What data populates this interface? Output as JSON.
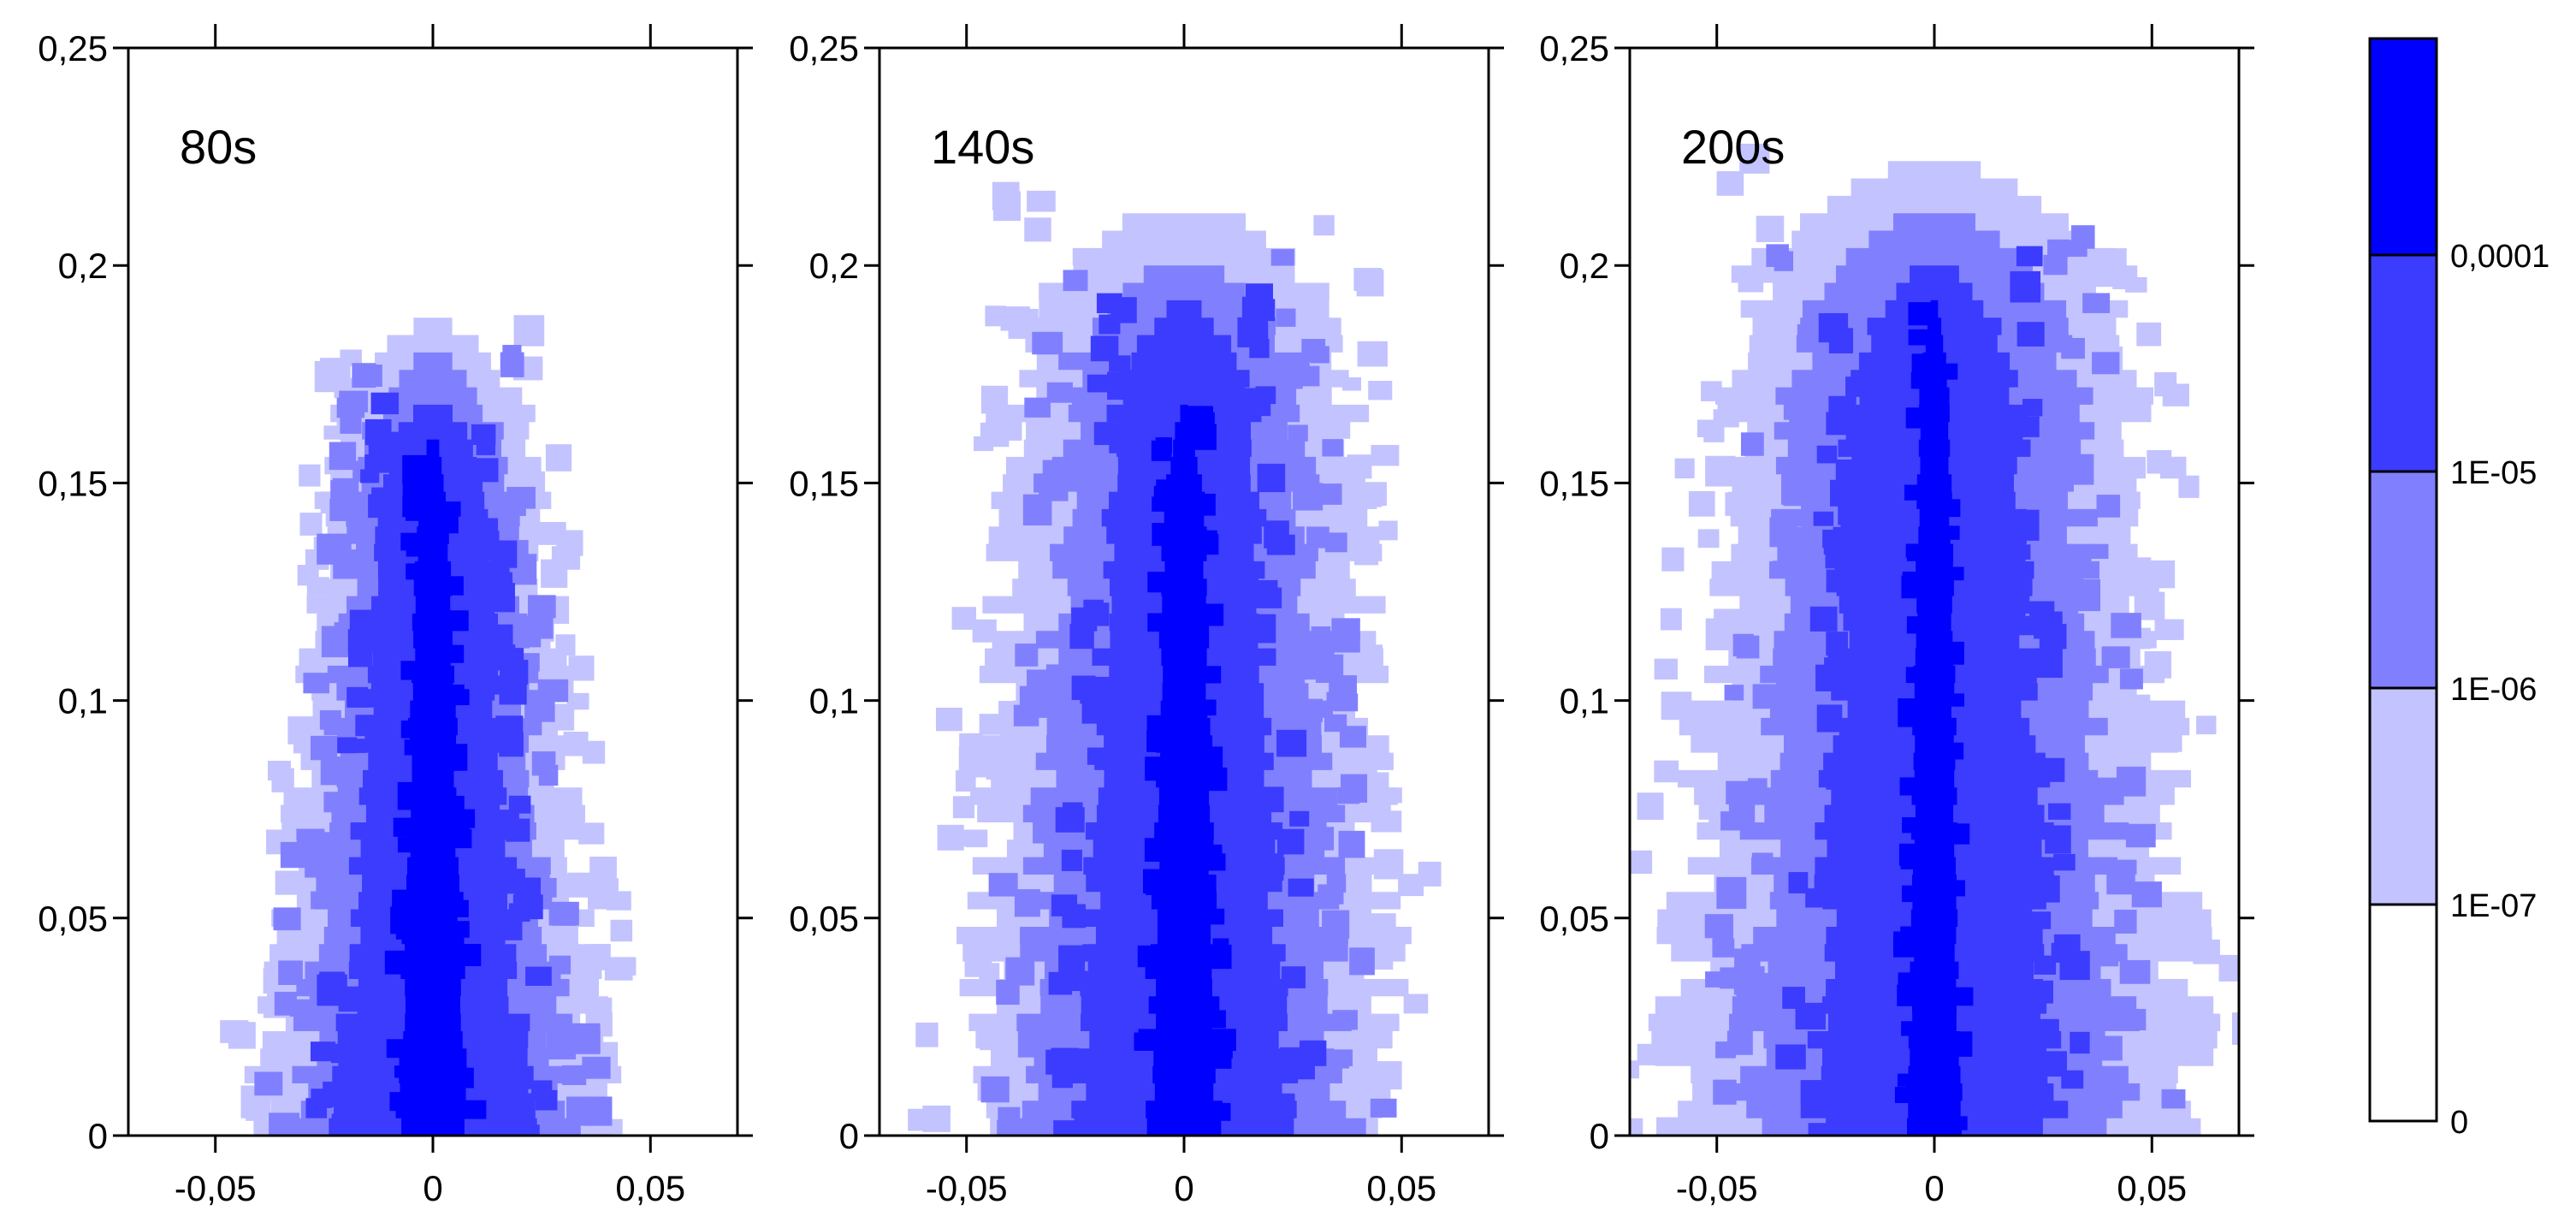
{
  "chart_data": [
    {
      "type": "heatmap",
      "panel_label": "80s",
      "xlim": [
        -0.07,
        0.07
      ],
      "ylim": [
        0,
        0.25
      ],
      "x_ticks": [
        -0.05,
        0,
        0.05
      ],
      "x_tick_labels": [
        "-0,05",
        "0",
        "0,05"
      ],
      "y_ticks": [
        0,
        0.05,
        0.1,
        0.15,
        0.2,
        0.25
      ],
      "y_tick_labels": [
        "0",
        "0,05",
        "0,1",
        "0,15",
        "0,2",
        "0,25"
      ],
      "plume": {
        "levels": [
          {
            "threshold": "1E-07",
            "halfwidth_base": 0.04,
            "halfwidth_top": 0.02,
            "top": 0.185
          },
          {
            "threshold": "1E-06",
            "halfwidth_base": 0.032,
            "halfwidth_top": 0.015,
            "top": 0.178
          },
          {
            "threshold": "1E-05",
            "halfwidth_base": 0.022,
            "halfwidth_top": 0.011,
            "top": 0.168
          },
          {
            "threshold": "0,0001",
            "halfwidth_base": 0.008,
            "halfwidth_top": 0.003,
            "top": 0.16
          }
        ]
      }
    },
    {
      "type": "heatmap",
      "panel_label": "140s",
      "xlim": [
        -0.07,
        0.07
      ],
      "ylim": [
        0,
        0.25
      ],
      "x_ticks": [
        -0.05,
        0,
        0.05
      ],
      "x_tick_labels": [
        "-0,05",
        "0",
        "0,05"
      ],
      "y_ticks": [
        0,
        0.05,
        0.1,
        0.15,
        0.2,
        0.25
      ],
      "y_tick_labels": [
        "0",
        "0,05",
        "0,1",
        "0,15",
        "0,2",
        "0,25"
      ],
      "plume": {
        "levels": [
          {
            "threshold": "1E-07",
            "halfwidth_base": 0.05,
            "halfwidth_top": 0.035,
            "top": 0.212
          },
          {
            "threshold": "1E-06",
            "halfwidth_base": 0.038,
            "halfwidth_top": 0.025,
            "top": 0.2
          },
          {
            "threshold": "1E-05",
            "halfwidth_base": 0.025,
            "halfwidth_top": 0.015,
            "top": 0.19
          },
          {
            "threshold": "0,0001",
            "halfwidth_base": 0.008,
            "halfwidth_top": 0.004,
            "top": 0.165
          }
        ]
      }
    },
    {
      "type": "heatmap",
      "panel_label": "200s",
      "xlim": [
        -0.07,
        0.07
      ],
      "ylim": [
        0,
        0.25
      ],
      "x_ticks": [
        -0.05,
        0,
        0.05
      ],
      "x_tick_labels": [
        "-0,05",
        "0",
        "0,05"
      ],
      "y_ticks": [
        0,
        0.05,
        0.1,
        0.15,
        0.2,
        0.25
      ],
      "y_tick_labels": [
        "0",
        "0,05",
        "0,1",
        "0,15",
        "0,2",
        "0,25"
      ],
      "plume": {
        "levels": [
          {
            "threshold": "1E-07",
            "halfwidth_base": 0.062,
            "halfwidth_top": 0.04,
            "top": 0.222
          },
          {
            "threshold": "1E-06",
            "halfwidth_base": 0.045,
            "halfwidth_top": 0.03,
            "top": 0.21
          },
          {
            "threshold": "1E-05",
            "halfwidth_base": 0.028,
            "halfwidth_top": 0.018,
            "top": 0.198
          },
          {
            "threshold": "0,0001",
            "halfwidth_base": 0.006,
            "halfwidth_top": 0.003,
            "top": 0.19
          }
        ]
      }
    }
  ],
  "colorbar": {
    "levels": [
      {
        "label": "0",
        "color": "#ffffff"
      },
      {
        "label": "1E-07",
        "color": "#c3c3ff"
      },
      {
        "label": "1E-06",
        "color": "#8080ff"
      },
      {
        "label": "1E-05",
        "color": "#3c3cff"
      },
      {
        "label": "0,0001",
        "color": "#0000ff"
      }
    ],
    "top_color": "#0000ff"
  }
}
